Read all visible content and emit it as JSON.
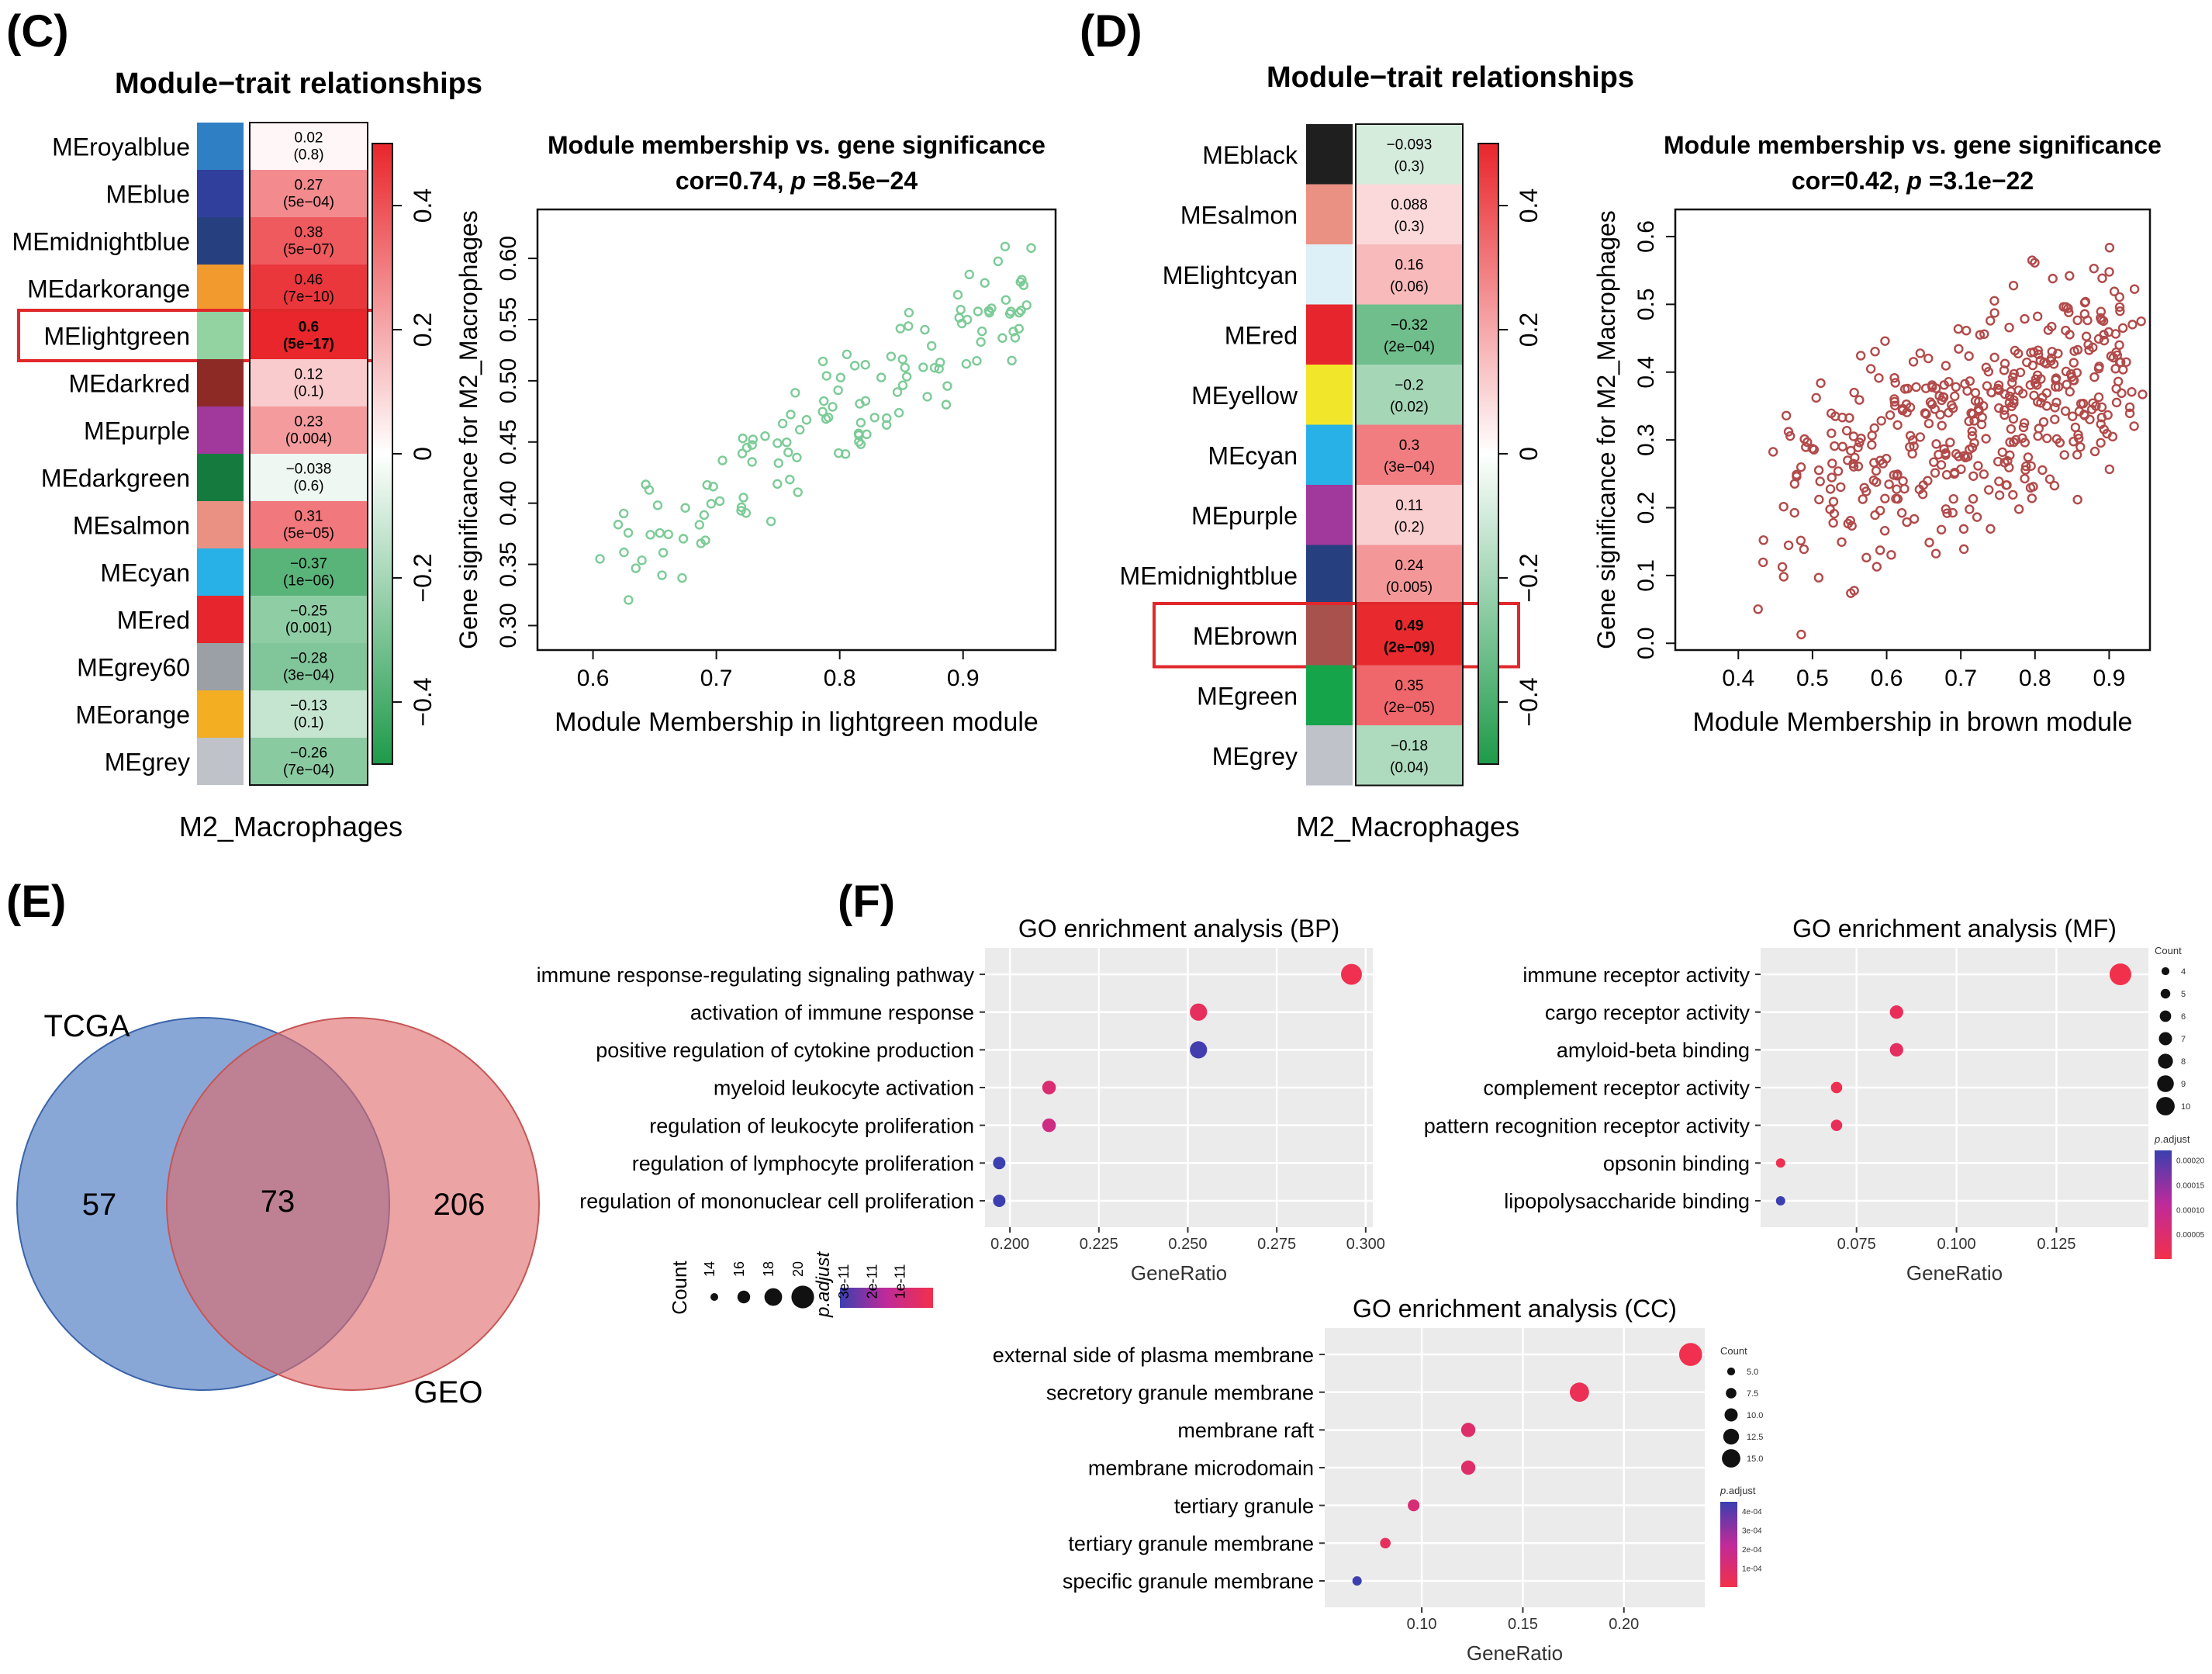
{
  "panel_labels": {
    "c": "(C)",
    "d": "(D)",
    "e": "(E)",
    "f": "(F)"
  },
  "colors": {
    "green": "#1e9a4a",
    "white": "#ffffff",
    "red": "#e8262b",
    "frame": "#111111",
    "scatter_c": "#7ccb97",
    "scatter_d": "#b24a4a",
    "highlight": "#e0282b",
    "venn_a": "#4a78c0",
    "venn_b": "#de6b6b",
    "grid_bg": "#ebebeb"
  },
  "chart_data": [
    {
      "id": "heatmap_c",
      "type": "heatmap",
      "title": "Module−trait relationships",
      "xlabel": "M2_Macrophages",
      "legend_ticks": [
        "0.4",
        "0.2",
        "0",
        "−0.2",
        "−0.4"
      ],
      "legend_values": [
        0.4,
        0.2,
        0,
        -0.2,
        -0.4
      ],
      "scale": [
        -0.5,
        0.5
      ],
      "highlight": "MElightgreen",
      "rows": [
        {
          "name": "MEroyalblue",
          "color": "#2f7fc4",
          "cor": 0.02,
          "cor_text": "0.02",
          "p_text": "(0.8)"
        },
        {
          "name": "MEblue",
          "color": "#303f9c",
          "cor": 0.27,
          "cor_text": "0.27",
          "p_text": "(5e−04)"
        },
        {
          "name": "MEmidnightblue",
          "color": "#26407f",
          "cor": 0.38,
          "cor_text": "0.38",
          "p_text": "(5e−07)"
        },
        {
          "name": "MEdarkorange",
          "color": "#f29a2e",
          "cor": 0.46,
          "cor_text": "0.46",
          "p_text": "(7e−10)"
        },
        {
          "name": "MElightgreen",
          "color": "#93d3a2",
          "cor": 0.6,
          "cor_text": "0.6",
          "p_text": "(5e−17)",
          "bold": true
        },
        {
          "name": "MEdarkred",
          "color": "#8e2a26",
          "cor": 0.12,
          "cor_text": "0.12",
          "p_text": "(0.1)"
        },
        {
          "name": "MEpurple",
          "color": "#a0399b",
          "cor": 0.23,
          "cor_text": "0.23",
          "p_text": "(0.004)"
        },
        {
          "name": "MEdarkgreen",
          "color": "#147a3d",
          "cor": -0.038,
          "cor_text": "−0.038",
          "p_text": "(0.6)"
        },
        {
          "name": "MEsalmon",
          "color": "#ea9184",
          "cor": 0.31,
          "cor_text": "0.31",
          "p_text": "(5e−05)"
        },
        {
          "name": "MEcyan",
          "color": "#28b1e6",
          "cor": -0.37,
          "cor_text": "−0.37",
          "p_text": "(1e−06)"
        },
        {
          "name": "MEred",
          "color": "#e6262c",
          "cor": -0.25,
          "cor_text": "−0.25",
          "p_text": "(0.001)"
        },
        {
          "name": "MEgrey60",
          "color": "#9aa0a6",
          "cor": -0.28,
          "cor_text": "−0.28",
          "p_text": "(3e−04)"
        },
        {
          "name": "MEorange",
          "color": "#f3ae22",
          "cor": -0.13,
          "cor_text": "−0.13",
          "p_text": "(0.1)"
        },
        {
          "name": "MEgrey",
          "color": "#bfc3c9",
          "cor": -0.26,
          "cor_text": "−0.26",
          "p_text": "(7e−04)"
        }
      ]
    },
    {
      "id": "scatter_c",
      "type": "scatter",
      "title": "Module membership vs. gene significance",
      "subtitle_prefix": "cor=0.74, ",
      "subtitle_p": "p",
      "subtitle_suffix": " =8.5e−24",
      "xlabel": "Module Membership in lightgreen module",
      "ylabel": "Gene significance for  M2_Macrophages",
      "xlim": [
        0.555,
        0.975
      ],
      "ylim": [
        0.28,
        0.64
      ],
      "xticks": [
        0.6,
        0.7,
        0.8,
        0.9
      ],
      "xtick_labels": [
        "0.6",
        "0.7",
        "0.8",
        "0.9"
      ],
      "yticks": [
        0.3,
        0.35,
        0.4,
        0.45,
        0.5,
        0.55,
        0.6
      ],
      "ytick_labels": [
        "0.30",
        "0.35",
        "0.40",
        "0.45",
        "0.50",
        "0.55",
        "0.60"
      ],
      "n_points": 130,
      "trend": [
        0.6,
        0.34,
        0.95,
        0.57
      ],
      "noise": 0.035
    },
    {
      "id": "heatmap_d",
      "type": "heatmap",
      "title": "Module−trait relationships",
      "xlabel": "M2_Macrophages",
      "legend_ticks": [
        "0.4",
        "0.2",
        "0",
        "−0.2",
        "−0.4"
      ],
      "legend_values": [
        0.4,
        0.2,
        0,
        -0.2,
        -0.4
      ],
      "scale": [
        -0.5,
        0.5
      ],
      "highlight": "MEbrown",
      "rows": [
        {
          "name": "MEblack",
          "color": "#1f1f1f",
          "cor": -0.093,
          "cor_text": "−0.093",
          "p_text": "(0.3)"
        },
        {
          "name": "MEsalmon",
          "color": "#ea9184",
          "cor": 0.088,
          "cor_text": "0.088",
          "p_text": "(0.3)"
        },
        {
          "name": "MElightcyan",
          "color": "#def0f7",
          "cor": 0.16,
          "cor_text": "0.16",
          "p_text": "(0.06)"
        },
        {
          "name": "MEred",
          "color": "#e6262c",
          "cor": -0.32,
          "cor_text": "−0.32",
          "p_text": "(2e−04)"
        },
        {
          "name": "MEyellow",
          "color": "#f1e62a",
          "cor": -0.2,
          "cor_text": "−0.2",
          "p_text": "(0.02)"
        },
        {
          "name": "MEcyan",
          "color": "#28b1e6",
          "cor": 0.3,
          "cor_text": "0.3",
          "p_text": "(3e−04)"
        },
        {
          "name": "MEpurple",
          "color": "#a0399b",
          "cor": 0.11,
          "cor_text": "0.11",
          "p_text": "(0.2)"
        },
        {
          "name": "MEmidnightblue",
          "color": "#26407f",
          "cor": 0.24,
          "cor_text": "0.24",
          "p_text": "(0.005)"
        },
        {
          "name": "MEbrown",
          "color": "#a8524d",
          "cor": 0.49,
          "cor_text": "0.49",
          "p_text": "(2e−09)",
          "bold": true
        },
        {
          "name": "MEgreen",
          "color": "#16a44b",
          "cor": 0.35,
          "cor_text": "0.35",
          "p_text": "(2e−05)"
        },
        {
          "name": "MEgrey",
          "color": "#bfc3c9",
          "cor": -0.18,
          "cor_text": "−0.18",
          "p_text": "(0.04)"
        }
      ]
    },
    {
      "id": "scatter_d",
      "type": "scatter",
      "title": "Module membership vs. gene significance",
      "subtitle_prefix": "cor=0.42, ",
      "subtitle_p": "p",
      "subtitle_suffix": " =3.1e−22",
      "xlabel": "Module Membership in brown module",
      "ylabel": "Gene significance for  M2_Macrophages",
      "xlim": [
        0.315,
        0.955
      ],
      "ylim": [
        -0.01,
        0.64
      ],
      "xticks": [
        0.4,
        0.5,
        0.6,
        0.7,
        0.8,
        0.9
      ],
      "xtick_labels": [
        "0.4",
        "0.5",
        "0.6",
        "0.7",
        "0.8",
        "0.9"
      ],
      "yticks": [
        0,
        0.1,
        0.2,
        0.3,
        0.4,
        0.5,
        0.6
      ],
      "ytick_labels": [
        "0.0",
        "0.1",
        "0.2",
        "0.3",
        "0.4",
        "0.5",
        "0.6"
      ],
      "n_points": 430,
      "trend": [
        0.45,
        0.2,
        0.92,
        0.42
      ],
      "noise": 0.11
    },
    {
      "id": "venn_e",
      "type": "venn",
      "sets": [
        {
          "name": "TCGA",
          "only": 57
        },
        {
          "name": "GEO",
          "only": 206
        }
      ],
      "labels": {
        "a": "TCGA",
        "b": "GEO",
        "a_only": "57",
        "both": "73",
        "b_only": "206"
      }
    },
    {
      "id": "dot_bp",
      "type": "scatter",
      "title": "GO enrichment analysis (BP)",
      "xlabel": "GeneRatio",
      "xlim": [
        0.193,
        0.302
      ],
      "xticks": [
        0.2,
        0.225,
        0.25,
        0.275,
        0.3
      ],
      "xtick_labels": [
        "0.200",
        "0.225",
        "0.250",
        "0.275",
        "0.300"
      ],
      "size_range": [
        14,
        23
      ],
      "color_range": [
        0,
        3.3e-11
      ],
      "terms": [
        {
          "term": "immune response-regulating signaling pathway",
          "ratio": 0.296,
          "count": 21,
          "padj": 1e-12
        },
        {
          "term": "activation of immune response",
          "ratio": 0.253,
          "count": 18,
          "padj": 4e-12
        },
        {
          "term": "positive regulation of cytokine production",
          "ratio": 0.253,
          "count": 18,
          "padj": 3.2e-11
        },
        {
          "term": "myeloid leukocyte activation",
          "ratio": 0.211,
          "count": 15,
          "padj": 8e-12
        },
        {
          "term": "regulation of leukocyte proliferation",
          "ratio": 0.211,
          "count": 15,
          "padj": 1.2e-11
        },
        {
          "term": "regulation of lymphocyte proliferation",
          "ratio": 0.197,
          "count": 14,
          "padj": 3.3e-11
        },
        {
          "term": "regulation of mononuclear cell proliferation",
          "ratio": 0.197,
          "count": 14,
          "padj": 3.3e-11
        }
      ],
      "legend": {
        "count_title": "Count",
        "count_labels": [
          "14",
          "16",
          "18",
          "20"
        ],
        "count_values": [
          14,
          16,
          18,
          20
        ],
        "padj_title": "p.adjust",
        "padj_labels": [
          "3e-11",
          "2e-11",
          "1e-11"
        ],
        "padj_values": [
          3e-11,
          2e-11,
          1e-11
        ]
      }
    },
    {
      "id": "dot_mf",
      "type": "scatter",
      "title": "GO enrichment analysis (MF)",
      "xlabel": "GeneRatio",
      "xlim": [
        0.051,
        0.148
      ],
      "xticks": [
        0.075,
        0.1,
        0.125
      ],
      "xtick_labels": [
        "0.075",
        "0.100",
        "0.125"
      ],
      "size_range": [
        4,
        10
      ],
      "color_range": [
        0,
        0.00022
      ],
      "terms": [
        {
          "term": "immune receptor activity",
          "ratio": 0.141,
          "count": 10,
          "padj": 2e-06
        },
        {
          "term": "cargo receptor activity",
          "ratio": 0.085,
          "count": 6,
          "padj": 2e-05
        },
        {
          "term": "amyloid-beta binding",
          "ratio": 0.085,
          "count": 6,
          "padj": 3e-05
        },
        {
          "term": "complement receptor activity",
          "ratio": 0.07,
          "count": 5,
          "padj": 1e-05
        },
        {
          "term": "pattern recognition receptor activity",
          "ratio": 0.07,
          "count": 5,
          "padj": 2e-05
        },
        {
          "term": "opsonin binding",
          "ratio": 0.056,
          "count": 4,
          "padj": 1e-05
        },
        {
          "term": "lipopolysaccharide binding",
          "ratio": 0.056,
          "count": 4,
          "padj": 0.00022
        }
      ],
      "legend": {
        "count_title": "Count",
        "count_labels": [
          "4",
          "5",
          "6",
          "7",
          "8",
          "9",
          "10"
        ],
        "count_values": [
          4,
          5,
          6,
          7,
          8,
          9,
          10
        ],
        "padj_title": "p.adjust",
        "padj_labels": [
          "0.00020",
          "0.00015",
          "0.00010",
          "0.00005"
        ],
        "padj_values": [
          0.0002,
          0.00015,
          0.0001,
          5e-05
        ]
      }
    },
    {
      "id": "dot_cc",
      "type": "scatter",
      "title": "GO enrichment analysis (CC)",
      "xlabel": "GeneRatio",
      "xlim": [
        0.052,
        0.24
      ],
      "xticks": [
        0.1,
        0.15,
        0.2
      ],
      "xtick_labels": [
        "0.10",
        "0.15",
        "0.20"
      ],
      "size_range": [
        5,
        15
      ],
      "color_range": [
        0,
        0.00045
      ],
      "terms": [
        {
          "term": "external side of plasma membrane",
          "ratio": 0.233,
          "count": 16,
          "padj": 1e-05
        },
        {
          "term": "secretory granule membrane",
          "ratio": 0.178,
          "count": 13,
          "padj": 3e-05
        },
        {
          "term": "membrane raft",
          "ratio": 0.123,
          "count": 9,
          "padj": 9e-05
        },
        {
          "term": "membrane microdomain",
          "ratio": 0.123,
          "count": 9,
          "padj": 9e-05
        },
        {
          "term": "tertiary granule",
          "ratio": 0.096,
          "count": 7,
          "padj": 0.00012
        },
        {
          "term": "tertiary granule membrane",
          "ratio": 0.082,
          "count": 6,
          "padj": 5e-05
        },
        {
          "term": "specific granule membrane",
          "ratio": 0.068,
          "count": 5,
          "padj": 0.00045
        }
      ],
      "legend": {
        "count_title": "Count",
        "count_labels": [
          "5.0",
          "7.5",
          "10.0",
          "12.5",
          "15.0"
        ],
        "count_values": [
          5,
          7.5,
          10,
          12.5,
          15
        ],
        "padj_title": "p.adjust",
        "padj_labels": [
          "4e-04",
          "3e-04",
          "2e-04",
          "1e-04"
        ],
        "padj_values": [
          0.0004,
          0.0003,
          0.0002,
          0.0001
        ]
      }
    }
  ]
}
